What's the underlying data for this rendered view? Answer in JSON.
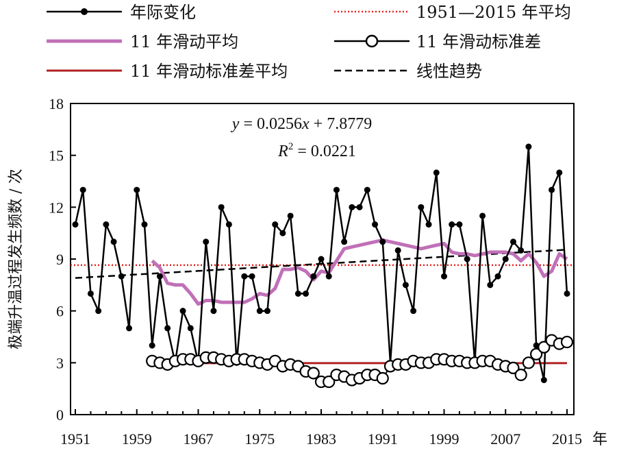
{
  "chart_data": {
    "type": "line",
    "ylabel": "极端升温过程发生频数 / 次",
    "xlabel_unit": "年",
    "x_ticks": [
      1951,
      1959,
      1967,
      1975,
      1983,
      1991,
      1999,
      2007,
      2015
    ],
    "x_tick_labels": [
      "1951",
      "1959",
      "1967",
      "1975",
      "1983",
      "1991",
      "1999",
      "2007",
      "2015"
    ],
    "xlim": [
      1951,
      2016
    ],
    "ylim": [
      0,
      18
    ],
    "y_ticks": [
      0,
      3,
      6,
      9,
      12,
      15,
      18
    ],
    "y_tick_labels": [
      "0",
      "3",
      "6",
      "9",
      "12",
      "15",
      "18"
    ],
    "legend": {
      "annual": "年际变化",
      "mean_period": "1951—2015 年平均",
      "moving_avg": "11 年滑动平均",
      "moving_std": "11 年滑动标准差",
      "moving_std_mean": "11 年滑动标准差平均",
      "trend": "线性趋势"
    },
    "annotation": {
      "equation_y": "y",
      "equation_eq": " = 0.0256",
      "equation_x": "x",
      "equation_rest": " + 7.8779",
      "r2_r": "R",
      "r2_sup": "2",
      "r2_rest": " = 0.0221"
    },
    "colors": {
      "annual": "#000000",
      "mean_period": "#e8201a",
      "moving_avg": "#c070b8",
      "moving_std": "#000000",
      "moving_std_mean": "#b02020",
      "trend": "#000000"
    },
    "mean_period_value": 8.65,
    "moving_std_mean_value": 2.98,
    "trend": {
      "slope": 0.0256,
      "intercept": 7.8779
    },
    "series": [
      {
        "name": "年际变化",
        "x": [
          1951,
          1952,
          1953,
          1954,
          1955,
          1956,
          1957,
          1958,
          1959,
          1960,
          1961,
          1962,
          1963,
          1964,
          1965,
          1966,
          1967,
          1968,
          1969,
          1970,
          1971,
          1972,
          1973,
          1974,
          1975,
          1976,
          1977,
          1978,
          1979,
          1980,
          1981,
          1982,
          1983,
          1984,
          1985,
          1986,
          1987,
          1988,
          1989,
          1990,
          1991,
          1992,
          1993,
          1994,
          1995,
          1996,
          1997,
          1998,
          1999,
          2000,
          2001,
          2002,
          2003,
          2004,
          2005,
          2006,
          2007,
          2008,
          2009,
          2010,
          2011,
          2012,
          2013,
          2014,
          2015
        ],
        "values": [
          11,
          13,
          7,
          6,
          11,
          10,
          8,
          5,
          13,
          11,
          4,
          8,
          5,
          3,
          6,
          5,
          3,
          10,
          6,
          12,
          11,
          3,
          8,
          8,
          6,
          6,
          11,
          10.5,
          11.5,
          7,
          7,
          8,
          9,
          8,
          13,
          10,
          12,
          12,
          13,
          11,
          10,
          3,
          9.5,
          7.5,
          6,
          12,
          11,
          14,
          8,
          11,
          11,
          9,
          3,
          11.5,
          7.5,
          8,
          9,
          10,
          9.5,
          15.5,
          4,
          2,
          13,
          14,
          7
        ]
      },
      {
        "name": "11 年滑动平均",
        "x": [
          1956,
          1957,
          1958,
          1959,
          1960,
          1961,
          1962,
          1963,
          1964,
          1965,
          1966,
          1967,
          1968,
          1969,
          1970,
          1971,
          1972,
          1973,
          1974,
          1975,
          1976,
          1977,
          1978,
          1979,
          1980,
          1981,
          1982,
          1983,
          1984,
          1985,
          1986,
          1987,
          1988,
          1989,
          1990,
          1991,
          1992,
          1993,
          1994,
          1995,
          1996,
          1997,
          1998,
          1999,
          2000,
          2001,
          2002,
          2003,
          2004,
          2005,
          2006,
          2007,
          2008,
          2009,
          2010,
          2011,
          2012,
          2013,
          2014,
          2015
        ],
        "values": [
          null,
          null,
          null,
          null,
          null,
          8.9,
          8.5,
          7.6,
          7.5,
          7.5,
          7.0,
          6.4,
          6.6,
          6.6,
          6.5,
          6.5,
          6.5,
          6.5,
          6.7,
          7.0,
          6.9,
          7.3,
          8.4,
          8.4,
          8.5,
          8.3,
          7.8,
          8.3,
          8.2,
          8.9,
          9.6,
          9.7,
          9.8,
          9.9,
          10.0,
          10.1,
          10.0,
          9.9,
          9.8,
          9.7,
          9.6,
          9.7,
          9.8,
          9.9,
          9.4,
          9.3,
          9.3,
          9.2,
          9.3,
          9.4,
          9.4,
          9.4,
          9.3,
          8.9,
          9.3,
          8.8,
          8.0,
          8.3,
          9.3,
          9.0
        ]
      },
      {
        "name": "11 年滑动标准差",
        "x": [
          1961,
          1962,
          1963,
          1964,
          1965,
          1966,
          1967,
          1968,
          1969,
          1970,
          1971,
          1972,
          1973,
          1974,
          1975,
          1976,
          1977,
          1978,
          1979,
          1980,
          1981,
          1982,
          1983,
          1984,
          1985,
          1986,
          1987,
          1988,
          1989,
          1990,
          1991,
          1992,
          1993,
          1994,
          1995,
          1996,
          1997,
          1998,
          1999,
          2000,
          2001,
          2002,
          2003,
          2004,
          2005,
          2006,
          2007,
          2008,
          2009,
          2010,
          2011,
          2012,
          2013,
          2014,
          2015
        ],
        "values": [
          3.1,
          3.0,
          2.9,
          3.1,
          3.2,
          3.2,
          3.1,
          3.3,
          3.3,
          3.2,
          3.1,
          3.2,
          3.2,
          3.1,
          3.0,
          2.9,
          3.1,
          2.8,
          2.9,
          2.8,
          2.5,
          2.4,
          1.9,
          1.9,
          2.3,
          2.2,
          2.0,
          2.1,
          2.3,
          2.3,
          2.1,
          2.8,
          2.9,
          2.9,
          3.1,
          3.0,
          3.0,
          3.2,
          3.2,
          3.1,
          3.1,
          3.0,
          3.0,
          3.1,
          3.1,
          2.9,
          2.8,
          2.7,
          2.3,
          3.0,
          3.5,
          3.9,
          4.3,
          4.1,
          4.2
        ]
      }
    ]
  }
}
